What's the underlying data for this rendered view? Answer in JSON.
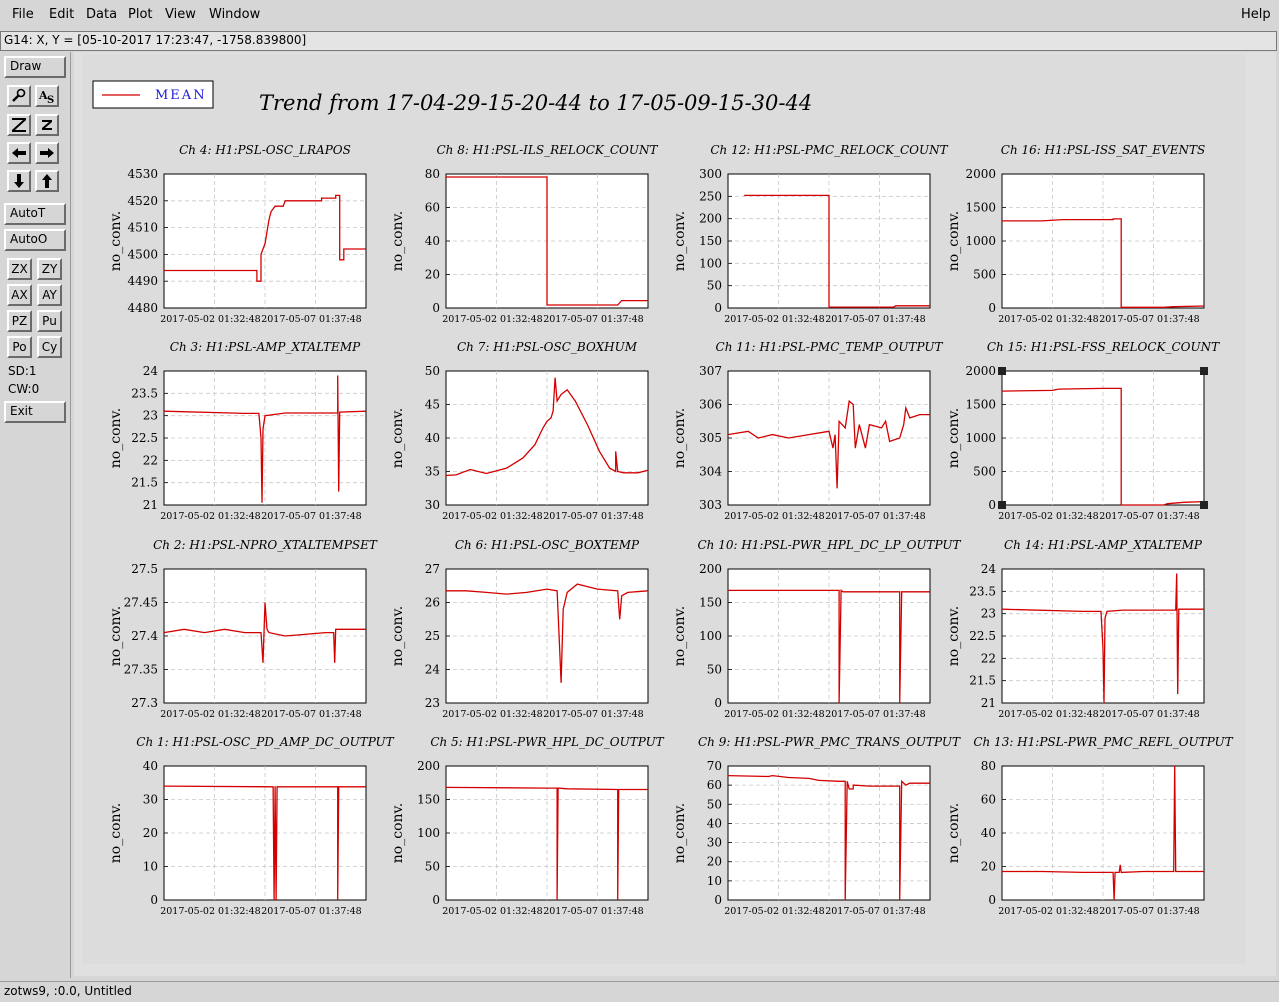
{
  "menu": {
    "file": "File",
    "edit": "Edit",
    "data": "Data",
    "plot": "Plot",
    "view": "View",
    "window": "Window",
    "help": "Help"
  },
  "coord_readout": "G14: X, Y = [05-10-2017 17:23:47, -1758.839800]",
  "toolbar": {
    "draw": "Draw",
    "autot": "AutoT",
    "autoo": "AutoO",
    "zx": "ZX",
    "zy": "ZY",
    "ax": "AX",
    "ay": "AY",
    "pz": "PZ",
    "pu": "Pu",
    "po": "Po",
    "cy": "Cy",
    "sd": "SD:1",
    "cw": "CW:0",
    "exit": "Exit",
    "icons": [
      "magnify-icon",
      "text-tool-icon",
      "zoom-big-z-icon",
      "zoom-small-z-icon",
      "arrow-left-icon",
      "arrow-right-icon",
      "arrow-down-icon",
      "arrow-up-icon"
    ]
  },
  "status_text": "zotws9, :0.0, Untitled",
  "chart_data": {
    "type": "line",
    "title": "Trend from 17-04-29-15-20-44 to 17-05-09-15-30-44",
    "legend": {
      "label": "MEAN",
      "color": "#d40000",
      "placement": "top-left"
    },
    "line_color": "#d40000",
    "ylabel": "no_conv.",
    "xticks": [
      "2017-05-02 01:32:48",
      "2017-05-07 01:37:48"
    ],
    "grid": true,
    "panels": [
      {
        "title": "Ch 4: H1:PSL-OSC_LRAPOS",
        "yticks": [
          "4530",
          "4520",
          "4510",
          "4500",
          "4490",
          "4480"
        ],
        "ylim": [
          4480,
          4530
        ],
        "points": [
          [
            0,
            4494
          ],
          [
            0.46,
            4494
          ],
          [
            0.46,
            4490
          ],
          [
            0.48,
            4490
          ],
          [
            0.48,
            4500
          ],
          [
            0.5,
            4504
          ],
          [
            0.52,
            4513
          ],
          [
            0.53,
            4516
          ],
          [
            0.55,
            4518
          ],
          [
            0.59,
            4518
          ],
          [
            0.6,
            4520
          ],
          [
            0.78,
            4520
          ],
          [
            0.78,
            4521
          ],
          [
            0.85,
            4521
          ],
          [
            0.85,
            4522
          ],
          [
            0.87,
            4522
          ],
          [
            0.87,
            4498
          ],
          [
            0.89,
            4498
          ],
          [
            0.89,
            4502
          ],
          [
            1,
            4502
          ]
        ]
      },
      {
        "title": "Ch 8: H1:PSL-ILS_RELOCK_COUNT",
        "yticks": [
          "80",
          "60",
          "40",
          "20",
          "0"
        ],
        "ylim": [
          0,
          90
        ],
        "points": [
          [
            0,
            88
          ],
          [
            0.5,
            88
          ],
          [
            0.5,
            2
          ],
          [
            0.85,
            2
          ],
          [
            0.87,
            5
          ],
          [
            1,
            5
          ]
        ]
      },
      {
        "title": "Ch 12: H1:PSL-PMC_RELOCK_COUNT",
        "yticks": [
          "300",
          "250",
          "200",
          "150",
          "100",
          "50",
          "0"
        ],
        "ylim": [
          0,
          300
        ],
        "points": [
          [
            0.08,
            252
          ],
          [
            0.5,
            252
          ],
          [
            0.5,
            2
          ],
          [
            0.82,
            2
          ],
          [
            0.83,
            5
          ],
          [
            1,
            5
          ]
        ]
      },
      {
        "title": "Ch 16: H1:PSL-ISS_SAT_EVENTS",
        "yticks": [
          "2000",
          "1500",
          "1000",
          "500",
          "0"
        ],
        "ylim": [
          0,
          2000
        ],
        "points": [
          [
            0,
            1300
          ],
          [
            0.2,
            1300
          ],
          [
            0.3,
            1320
          ],
          [
            0.55,
            1320
          ],
          [
            0.55,
            1330
          ],
          [
            0.59,
            1330
          ],
          [
            0.59,
            10
          ],
          [
            0.8,
            10
          ],
          [
            0.85,
            20
          ],
          [
            1,
            30
          ]
        ]
      },
      {
        "title": "Ch 3: H1:PSL-AMP_XTALTEMP",
        "yticks": [
          "24",
          "23.5",
          "23",
          "22.5",
          "22",
          "21.5",
          "21"
        ],
        "ylim": [
          21,
          24
        ],
        "points": [
          [
            0,
            23.1
          ],
          [
            0.4,
            23.05
          ],
          [
            0.47,
            23.05
          ],
          [
            0.48,
            22.5
          ],
          [
            0.485,
            21.05
          ],
          [
            0.49,
            22.7
          ],
          [
            0.5,
            23.0
          ],
          [
            0.6,
            23.06
          ],
          [
            0.86,
            23.06
          ],
          [
            0.86,
            23.9
          ],
          [
            0.865,
            21.3
          ],
          [
            0.87,
            23.08
          ],
          [
            1,
            23.1
          ]
        ]
      },
      {
        "title": "Ch 7: H1:PSL-OSC_BOXHUM",
        "yticks": [
          "50",
          "45",
          "40",
          "35",
          "30"
        ],
        "ylim": [
          30,
          50
        ],
        "points": [
          [
            0,
            34.4
          ],
          [
            0.05,
            34.5
          ],
          [
            0.12,
            35.3
          ],
          [
            0.2,
            34.7
          ],
          [
            0.3,
            35.5
          ],
          [
            0.38,
            37
          ],
          [
            0.44,
            39
          ],
          [
            0.48,
            41.5
          ],
          [
            0.5,
            42.5
          ],
          [
            0.52,
            43
          ],
          [
            0.53,
            44
          ],
          [
            0.54,
            49
          ],
          [
            0.55,
            45.5
          ],
          [
            0.57,
            46.5
          ],
          [
            0.6,
            47.2
          ],
          [
            0.64,
            45.5
          ],
          [
            0.7,
            42
          ],
          [
            0.76,
            38
          ],
          [
            0.81,
            35.5
          ],
          [
            0.84,
            35
          ],
          [
            0.84,
            38
          ],
          [
            0.85,
            35
          ],
          [
            0.88,
            34.8
          ],
          [
            0.95,
            34.8
          ],
          [
            1,
            35.2
          ]
        ]
      },
      {
        "title": "Ch 11: H1:PSL-PMC_TEMP_OUTPUT",
        "yticks": [
          "307",
          "306",
          "305",
          "304",
          "303"
        ],
        "ylim": [
          303,
          307
        ],
        "points": [
          [
            0,
            305.1
          ],
          [
            0.1,
            305.2
          ],
          [
            0.15,
            305.0
          ],
          [
            0.22,
            305.1
          ],
          [
            0.3,
            305.0
          ],
          [
            0.4,
            305.1
          ],
          [
            0.5,
            305.2
          ],
          [
            0.52,
            304.7
          ],
          [
            0.53,
            305.1
          ],
          [
            0.54,
            303.5
          ],
          [
            0.55,
            305.5
          ],
          [
            0.58,
            305.3
          ],
          [
            0.6,
            306.1
          ],
          [
            0.62,
            306.0
          ],
          [
            0.63,
            304.7
          ],
          [
            0.65,
            305.4
          ],
          [
            0.68,
            304.7
          ],
          [
            0.7,
            305.4
          ],
          [
            0.76,
            305.3
          ],
          [
            0.78,
            305.5
          ],
          [
            0.8,
            304.9
          ],
          [
            0.85,
            305.0
          ],
          [
            0.87,
            305.4
          ],
          [
            0.88,
            305.9
          ],
          [
            0.9,
            305.6
          ],
          [
            0.95,
            305.7
          ],
          [
            1,
            305.7
          ]
        ]
      },
      {
        "title": "Ch 15: H1:PSL-FSS_RELOCK_COUNT",
        "yticks": [
          "2000",
          "1500",
          "1000",
          "500",
          "0"
        ],
        "ylim": [
          0,
          2000
        ],
        "points": [
          [
            0,
            1700
          ],
          [
            0.25,
            1710
          ],
          [
            0.28,
            1730
          ],
          [
            0.5,
            1740
          ],
          [
            0.59,
            1740
          ],
          [
            0.59,
            0
          ],
          [
            0.8,
            0
          ],
          [
            0.82,
            20
          ],
          [
            0.9,
            40
          ],
          [
            1,
            50
          ]
        ]
      },
      {
        "title": "Ch 2: H1:PSL-NPRO_XTALTEMPSET",
        "yticks": [
          "27.5",
          "27.45",
          "27.4",
          "27.35",
          "27.3"
        ],
        "ylim": [
          27.3,
          27.5
        ],
        "points": [
          [
            0,
            27.405
          ],
          [
            0.1,
            27.41
          ],
          [
            0.2,
            27.405
          ],
          [
            0.3,
            27.41
          ],
          [
            0.4,
            27.405
          ],
          [
            0.48,
            27.405
          ],
          [
            0.49,
            27.36
          ],
          [
            0.5,
            27.45
          ],
          [
            0.51,
            27.41
          ],
          [
            0.52,
            27.405
          ],
          [
            0.6,
            27.4
          ],
          [
            0.8,
            27.405
          ],
          [
            0.84,
            27.405
          ],
          [
            0.845,
            27.36
          ],
          [
            0.85,
            27.41
          ],
          [
            1,
            27.41
          ]
        ]
      },
      {
        "title": "Ch 6: H1:PSL-OSC_BOXTEMP",
        "yticks": [
          "27",
          "26",
          "25",
          "24",
          "23"
        ],
        "ylim": [
          23,
          27
        ],
        "points": [
          [
            0,
            26.35
          ],
          [
            0.1,
            26.35
          ],
          [
            0.2,
            26.3
          ],
          [
            0.3,
            26.25
          ],
          [
            0.4,
            26.3
          ],
          [
            0.5,
            26.4
          ],
          [
            0.55,
            26.35
          ],
          [
            0.56,
            25.0
          ],
          [
            0.57,
            23.6
          ],
          [
            0.58,
            25.8
          ],
          [
            0.6,
            26.3
          ],
          [
            0.65,
            26.55
          ],
          [
            0.75,
            26.4
          ],
          [
            0.85,
            26.35
          ],
          [
            0.86,
            25.5
          ],
          [
            0.87,
            26.2
          ],
          [
            0.9,
            26.3
          ],
          [
            1,
            26.35
          ]
        ]
      },
      {
        "title": "Ch 10: H1:PSL-PWR_HPL_DC_LP_OUTPUT",
        "yticks": [
          "200",
          "150",
          "100",
          "50",
          "0"
        ],
        "ylim": [
          0,
          200
        ],
        "points": [
          [
            0,
            168
          ],
          [
            0.55,
            168
          ],
          [
            0.55,
            0
          ],
          [
            0.56,
            168
          ],
          [
            0.57,
            166
          ],
          [
            0.85,
            166
          ],
          [
            0.85,
            0
          ],
          [
            0.86,
            166
          ],
          [
            1,
            166
          ]
        ]
      },
      {
        "title": "Ch 14: H1:PSL-AMP_XTALTEMP",
        "yticks": [
          "24",
          "23.5",
          "23",
          "22.5",
          "22",
          "21.5",
          "21"
        ],
        "ylim": [
          21,
          24
        ],
        "points": [
          [
            0,
            23.1
          ],
          [
            0.4,
            23.05
          ],
          [
            0.49,
            23.05
          ],
          [
            0.5,
            22.2
          ],
          [
            0.505,
            21.0
          ],
          [
            0.51,
            22.9
          ],
          [
            0.52,
            23.05
          ],
          [
            0.6,
            23.08
          ],
          [
            0.86,
            23.08
          ],
          [
            0.865,
            23.9
          ],
          [
            0.87,
            21.2
          ],
          [
            0.875,
            23.1
          ],
          [
            1,
            23.1
          ]
        ]
      },
      {
        "title": "Ch 1: H1:PSL-OSC_PD_AMP_DC_OUTPUT",
        "yticks": [
          "40",
          "30",
          "20",
          "10",
          "0"
        ],
        "ylim": [
          0,
          40
        ],
        "points": [
          [
            0,
            34
          ],
          [
            0.54,
            33.8
          ],
          [
            0.545,
            0
          ],
          [
            0.55,
            34
          ],
          [
            0.555,
            0
          ],
          [
            0.56,
            33.8
          ],
          [
            0.86,
            33.8
          ],
          [
            0.86,
            0
          ],
          [
            0.865,
            33.8
          ],
          [
            1,
            33.8
          ]
        ]
      },
      {
        "title": "Ch 5: H1:PSL-PWR_HPL_DC_OUTPUT",
        "yticks": [
          "200",
          "150",
          "100",
          "50",
          "0"
        ],
        "ylim": [
          0,
          200
        ],
        "points": [
          [
            0,
            168
          ],
          [
            0.5,
            167
          ],
          [
            0.55,
            167
          ],
          [
            0.55,
            0
          ],
          [
            0.555,
            167
          ],
          [
            0.6,
            166
          ],
          [
            0.85,
            165
          ],
          [
            0.85,
            0
          ],
          [
            0.855,
            165
          ],
          [
            1,
            165
          ]
        ]
      },
      {
        "title": "Ch 9: H1:PSL-PWR_PMC_TRANS_OUTPUT",
        "yticks": [
          "70",
          "60",
          "50",
          "40",
          "30",
          "20",
          "10",
          "0"
        ],
        "ylim": [
          0,
          70
        ],
        "points": [
          [
            0,
            65
          ],
          [
            0.2,
            64.5
          ],
          [
            0.22,
            65
          ],
          [
            0.3,
            64
          ],
          [
            0.4,
            63.5
          ],
          [
            0.45,
            62.5
          ],
          [
            0.55,
            62
          ],
          [
            0.58,
            62
          ],
          [
            0.58,
            0
          ],
          [
            0.59,
            62
          ],
          [
            0.6,
            58
          ],
          [
            0.62,
            58
          ],
          [
            0.62,
            60
          ],
          [
            0.7,
            59.5
          ],
          [
            0.85,
            59.5
          ],
          [
            0.85,
            0
          ],
          [
            0.86,
            62
          ],
          [
            0.88,
            60
          ],
          [
            0.9,
            61
          ],
          [
            1,
            61
          ]
        ]
      },
      {
        "title": "Ch 13: H1:PSL-PWR_PMC_REFL_OUTPUT",
        "yticks": [
          "80",
          "60",
          "40",
          "20",
          "0"
        ],
        "ylim": [
          0,
          80
        ],
        "points": [
          [
            0,
            17
          ],
          [
            0.2,
            17
          ],
          [
            0.4,
            16.5
          ],
          [
            0.55,
            16.5
          ],
          [
            0.555,
            0
          ],
          [
            0.56,
            16.5
          ],
          [
            0.58,
            16.5
          ],
          [
            0.585,
            21
          ],
          [
            0.59,
            16.5
          ],
          [
            0.7,
            17
          ],
          [
            0.85,
            17
          ],
          [
            0.855,
            80
          ],
          [
            0.86,
            17
          ],
          [
            1,
            17
          ]
        ]
      }
    ]
  }
}
